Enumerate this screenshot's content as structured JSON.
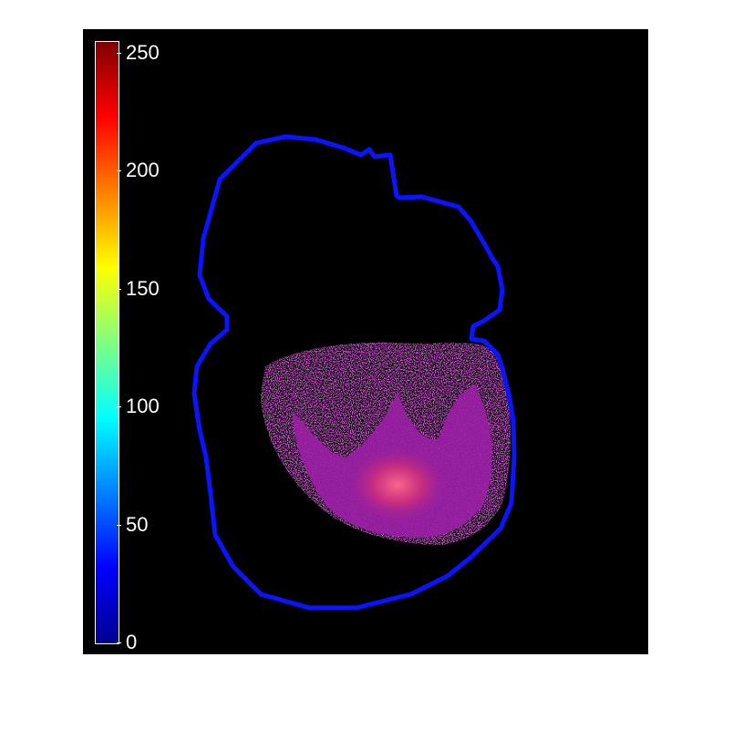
{
  "colorbar": {
    "ticks": [
      {
        "value": 0,
        "label": "0"
      },
      {
        "value": 50,
        "label": "50"
      },
      {
        "value": 100,
        "label": "100"
      },
      {
        "value": 150,
        "label": "150"
      },
      {
        "value": 200,
        "label": "200"
      },
      {
        "value": 250,
        "label": "250"
      }
    ],
    "min": 0,
    "max": 255,
    "colormap": "jet"
  },
  "colors": {
    "background": "#000000",
    "outline": "#0a14ff",
    "signal": "#a020a8",
    "hotspot": "#e0307a"
  }
}
